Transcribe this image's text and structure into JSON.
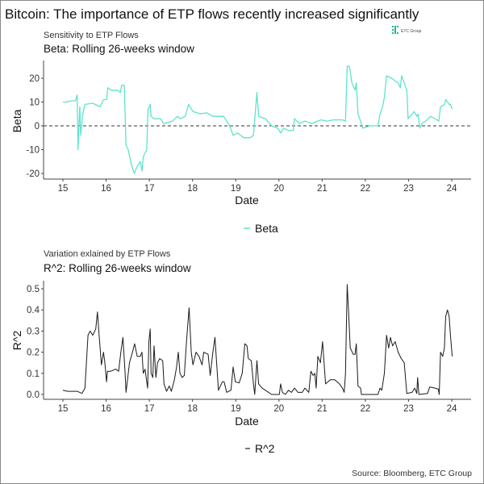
{
  "title": "Bitcoin: The importance of ETP flows recently increased significantly",
  "logo_text": "ETC Group",
  "source": "Source: Bloomberg, ETC Group",
  "colors": {
    "beta": "#5fe3cc",
    "r2": "#1a1a1a",
    "zero_line": "#333333",
    "logo": "#19b99a"
  },
  "chart_data": [
    {
      "type": "line",
      "subtitle": "Sensitivity to ETP Flows",
      "title": "Beta: Rolling 26-weeks window",
      "xlabel": "Date",
      "ylabel": "Beta",
      "xlim": [
        15,
        24
      ],
      "ylim": [
        -20,
        25
      ],
      "x_ticks": [
        "15",
        "16",
        "17",
        "18",
        "19",
        "20",
        "21",
        "22",
        "23",
        "24"
      ],
      "y_ticks": [
        "-20",
        "-10",
        "0",
        "10",
        "20"
      ],
      "reference_line": {
        "y": 0,
        "style": "dashed"
      },
      "legend": "bottom",
      "grid": false,
      "series": [
        {
          "name": "Beta",
          "x": [
            15.0,
            15.08,
            15.19,
            15.29,
            15.33,
            15.35,
            15.39,
            15.41,
            15.46,
            15.51,
            15.69,
            15.86,
            15.94,
            16.01,
            16.04,
            16.11,
            16.26,
            16.33,
            16.36,
            16.42,
            16.46,
            16.51,
            16.58,
            16.65,
            16.72,
            16.79,
            16.83,
            16.86,
            16.94,
            16.97,
            17.02,
            17.04,
            17.11,
            17.26,
            17.33,
            17.44,
            17.54,
            17.65,
            17.72,
            17.83,
            17.91,
            18.01,
            18.19,
            18.33,
            18.47,
            18.61,
            18.72,
            18.86,
            18.94,
            19.04,
            19.19,
            19.33,
            19.41,
            19.49,
            19.53,
            19.69,
            19.83,
            19.97,
            20.04,
            20.11,
            20.22,
            20.33,
            20.36,
            20.47,
            20.61,
            20.76,
            20.97,
            21.11,
            21.26,
            21.47,
            21.54,
            21.58,
            21.63,
            21.69,
            21.76,
            21.79,
            21.83,
            21.89,
            21.94,
            22.11,
            22.29,
            22.34,
            22.4,
            22.44,
            22.49,
            22.61,
            22.76,
            22.81,
            22.84,
            22.9,
            22.96,
            22.99,
            23.08,
            23.13,
            23.19,
            23.22,
            23.26,
            23.31,
            23.4,
            23.51,
            23.61,
            23.7,
            23.74,
            23.83,
            23.86,
            23.94,
            23.97,
            24.01
          ],
          "y": [
            10,
            10,
            10.5,
            10.5,
            13,
            -10,
            8,
            -4,
            5,
            9,
            9.5,
            8,
            11,
            11,
            16,
            15,
            15,
            14,
            17,
            17,
            -8,
            -10,
            -16,
            -20,
            -17,
            -15,
            -19,
            -13,
            -10,
            7,
            9,
            4,
            3,
            3,
            1,
            1.5,
            2,
            4,
            3,
            4,
            9,
            6,
            5,
            5.5,
            4,
            4,
            4,
            0,
            -4,
            -3,
            -5,
            -5,
            -4,
            14,
            4,
            3,
            0,
            -1,
            -3,
            -1,
            -2,
            -2,
            3,
            1,
            2,
            1,
            2.5,
            2,
            2.5,
            2.5,
            2,
            25,
            25,
            18,
            15,
            18,
            5,
            2,
            -1,
            0,
            0,
            5,
            8,
            12,
            21,
            20,
            18,
            16,
            21,
            18,
            15,
            3,
            5,
            6,
            4,
            5,
            -1,
            1,
            2,
            4,
            3,
            2,
            8,
            9,
            11,
            9,
            9,
            7
          ]
        }
      ]
    },
    {
      "type": "line",
      "subtitle": "Variation exlained by ETP Flows",
      "title": "R^2: Rolling 26-weeks window",
      "xlabel": "Date",
      "ylabel": "R^2",
      "xlim": [
        15,
        24
      ],
      "ylim": [
        0,
        0.52
      ],
      "x_ticks": [
        "15",
        "16",
        "17",
        "18",
        "19",
        "20",
        "21",
        "22",
        "23",
        "24"
      ],
      "y_ticks": [
        "0.0",
        "0.1",
        "0.2",
        "0.3",
        "0.4",
        "0.5"
      ],
      "legend": "bottom",
      "grid": false,
      "series": [
        {
          "name": "R^2",
          "x": [
            15.0,
            15.11,
            15.33,
            15.44,
            15.51,
            15.58,
            15.63,
            15.69,
            15.76,
            15.8,
            15.83,
            15.89,
            15.94,
            15.97,
            16.01,
            16.03,
            16.11,
            16.22,
            16.29,
            16.34,
            16.39,
            16.44,
            16.46,
            16.49,
            16.54,
            16.61,
            16.66,
            16.72,
            16.79,
            16.83,
            16.86,
            16.9,
            16.96,
            16.99,
            17.02,
            17.04,
            17.08,
            17.11,
            17.15,
            17.19,
            17.24,
            17.31,
            17.34,
            17.4,
            17.46,
            17.51,
            17.58,
            17.63,
            17.67,
            17.71,
            17.76,
            17.81,
            17.86,
            17.92,
            17.97,
            18.01,
            18.08,
            18.15,
            18.22,
            18.26,
            18.36,
            18.41,
            18.47,
            18.52,
            18.56,
            18.6,
            18.69,
            18.73,
            18.79,
            18.89,
            18.94,
            18.99,
            19.08,
            19.15,
            19.21,
            19.26,
            19.29,
            19.36,
            19.41,
            19.44,
            19.49,
            19.53,
            19.61,
            19.76,
            19.83,
            20.01,
            20.04,
            20.08,
            20.15,
            20.22,
            20.29,
            20.36,
            20.44,
            20.54,
            20.6,
            20.69,
            20.74,
            20.79,
            20.83,
            20.86,
            20.9,
            20.96,
            21.01,
            21.08,
            21.19,
            21.29,
            21.4,
            21.47,
            21.51,
            21.54,
            21.58,
            21.61,
            21.65,
            21.72,
            21.76,
            21.79,
            21.83,
            21.89,
            21.91,
            22.29,
            22.34,
            22.38,
            22.44,
            22.49,
            22.54,
            22.58,
            22.63,
            22.69,
            22.76,
            22.83,
            22.9,
            22.96,
            23.08,
            23.14,
            23.19,
            23.21,
            23.24,
            23.44,
            23.49,
            23.61,
            23.69,
            23.71,
            23.74,
            23.79,
            23.83,
            23.86,
            23.9,
            23.94,
            23.97,
            24.01
          ],
          "y": [
            0.02,
            0.015,
            0.015,
            0.005,
            0.03,
            0.28,
            0.3,
            0.28,
            0.31,
            0.39,
            0.3,
            0.14,
            0.2,
            0.15,
            0.06,
            0.11,
            0.11,
            0.12,
            0.11,
            0.2,
            0.27,
            0.1,
            0.01,
            0.06,
            0.15,
            0.2,
            0.24,
            0.18,
            0.18,
            0.2,
            0.1,
            0.12,
            0.03,
            0.25,
            0.31,
            0.1,
            0.08,
            0.23,
            0.08,
            0.15,
            0.17,
            0.16,
            0.05,
            0.015,
            0.04,
            0.015,
            0.07,
            0.13,
            0.2,
            0.1,
            0.08,
            0.09,
            0.25,
            0.41,
            0.2,
            0.14,
            0.2,
            0.18,
            0.14,
            0.2,
            0.19,
            0.09,
            0.2,
            0.27,
            0.14,
            0.02,
            0.06,
            0.06,
            0.01,
            0.02,
            0.13,
            0.06,
            0.055,
            0.1,
            0.24,
            0.23,
            0.17,
            0.16,
            0.05,
            0.0,
            0.16,
            0.05,
            0.03,
            0.01,
            0.0,
            0.0,
            0.05,
            0.01,
            0.0,
            0.02,
            0.01,
            0.03,
            0.01,
            0.01,
            0.03,
            0.01,
            0.11,
            0.09,
            0.1,
            0.03,
            0.18,
            0.15,
            0.25,
            0.05,
            0.07,
            0.07,
            0.05,
            0.03,
            0.01,
            0.1,
            0.52,
            0.4,
            0.22,
            0.19,
            0.19,
            0.24,
            0.04,
            0.03,
            0.0,
            0.0,
            0.03,
            0.02,
            0.1,
            0.28,
            0.22,
            0.27,
            0.23,
            0.25,
            0.2,
            0.17,
            0.15,
            0.005,
            0.01,
            0.03,
            0.005,
            0.08,
            0.0,
            0.005,
            0.035,
            0.03,
            0.025,
            0.0,
            0.2,
            0.18,
            0.22,
            0.37,
            0.4,
            0.37,
            0.28,
            0.18
          ]
        }
      ]
    }
  ]
}
